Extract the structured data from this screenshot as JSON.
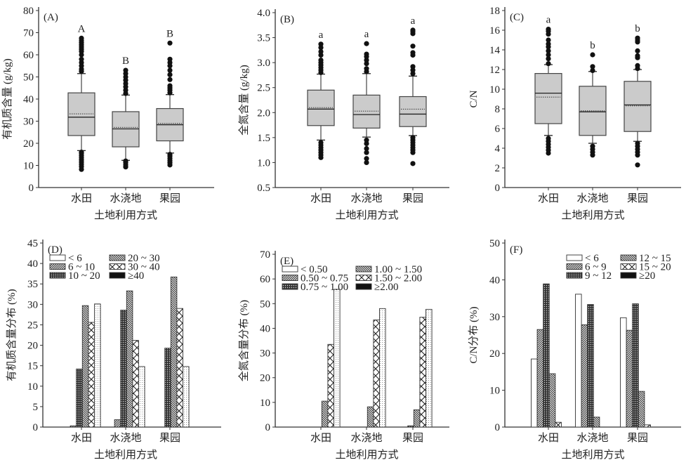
{
  "chart_data": [
    {
      "type": "box",
      "panel": "(A)",
      "ylabel": "有机质含量 (g/kg)",
      "xlabel": "土地利用方式",
      "categories": [
        "水田",
        "水浇地",
        "果园"
      ],
      "ylim": [
        0,
        80
      ],
      "yticks": [
        0,
        10,
        20,
        30,
        40,
        50,
        60,
        70,
        80
      ],
      "yticklabels": [
        "0",
        "10",
        "20",
        "30",
        "40",
        "50",
        "60",
        "70",
        "80"
      ],
      "letters": [
        "A",
        "B",
        "B"
      ],
      "boxes": [
        {
          "q1": 23.5,
          "median": 31.8,
          "mean": 33.3,
          "q3": 42.8,
          "whisker_low": 16.7,
          "whisker_high": 51.5,
          "outliers": [
            8.2,
            9.5,
            10.5,
            11.5,
            12.5,
            13.5,
            14.5,
            15.5,
            16.0,
            52.5,
            53.5,
            55.0,
            56.5,
            58.0,
            60.0,
            61.5,
            62.5,
            63.5,
            64.5,
            65.5,
            66.5,
            67.5
          ]
        },
        {
          "q1": 18.4,
          "median": 26.5,
          "mean": 27.2,
          "q3": 34.3,
          "whisker_low": 12.3,
          "whisker_high": 41.8,
          "outliers": [
            9.3,
            10.3,
            11.3,
            12.0,
            42.5,
            44.0,
            45.5,
            47.0,
            48.5,
            50.0,
            51.5,
            53.0
          ]
        },
        {
          "q1": 21.1,
          "median": 28.4,
          "mean": 29.0,
          "q3": 35.7,
          "whisker_low": 15.6,
          "whisker_high": 42.0,
          "outliers": [
            10.2,
            11.2,
            12.2,
            13.2,
            14.2,
            15.0,
            42.8,
            44.0,
            45.0,
            46.0,
            48.8,
            51.0,
            53.0,
            55.0,
            56.5,
            58.0,
            65.3
          ]
        }
      ]
    },
    {
      "type": "box",
      "panel": "(B)",
      "ylabel": "全氮含量 (g/kg)",
      "xlabel": "土地利用方式",
      "categories": [
        "水田",
        "水浇地",
        "果园"
      ],
      "ylim": [
        0.5,
        4.2
      ],
      "yticks": [
        0.5,
        1.0,
        1.5,
        2.0,
        2.5,
        3.0,
        3.5,
        4.0
      ],
      "yticklabels": [
        "0.5",
        "1.0",
        "1.5",
        "2.0",
        "2.5",
        "3.0",
        "3.5",
        "4.0"
      ],
      "letters": [
        "a",
        "a",
        "a"
      ],
      "boxes": [
        {
          "q1": 1.74,
          "median": 2.07,
          "mean": 2.1,
          "q3": 2.45,
          "whisker_low": 1.45,
          "whisker_high": 2.77,
          "outliers": [
            1.1,
            1.15,
            1.2,
            1.25,
            1.3,
            1.35,
            1.4,
            2.8,
            2.85,
            2.9,
            2.95,
            3.0,
            3.05,
            3.15,
            3.22,
            3.3,
            3.37
          ]
        },
        {
          "q1": 1.69,
          "median": 1.96,
          "mean": 2.03,
          "q3": 2.35,
          "whisker_low": 1.51,
          "whisker_high": 2.78,
          "outliers": [
            1.0,
            1.08,
            1.2,
            1.28,
            1.38,
            1.45,
            2.82,
            2.88,
            2.98,
            3.05,
            3.12,
            3.17,
            3.38
          ]
        },
        {
          "q1": 1.72,
          "median": 1.97,
          "mean": 2.07,
          "q3": 2.32,
          "whisker_low": 1.54,
          "whisker_high": 2.73,
          "outliers": [
            0.98,
            1.2,
            1.25,
            1.3,
            1.35,
            1.4,
            1.45,
            1.5,
            2.78,
            2.85,
            2.92,
            3.15,
            3.2,
            3.33,
            3.58,
            3.62,
            3.65
          ]
        }
      ]
    },
    {
      "type": "box",
      "panel": "(C)",
      "ylabel": "C/N",
      "xlabel": "土地利用方式",
      "categories": [
        "水田",
        "水浇地",
        "果园"
      ],
      "ylim": [
        0,
        18
      ],
      "yticks": [
        0,
        2,
        4,
        6,
        8,
        10,
        12,
        14,
        16,
        18
      ],
      "yticklabels": [
        "0",
        "2",
        "4",
        "6",
        "8",
        "10",
        "12",
        "14",
        "16",
        "18"
      ],
      "letters": [
        "a",
        "b",
        "b"
      ],
      "boxes": [
        {
          "q1": 6.5,
          "median": 9.6,
          "mean": 9.2,
          "q3": 11.6,
          "whisker_low": 5.3,
          "whisker_high": 12.5,
          "outliers": [
            3.5,
            3.8,
            4.1,
            4.4,
            4.7,
            5.0,
            12.6,
            13.1,
            13.5,
            13.9,
            14.3,
            14.6,
            15.0,
            15.6,
            15.9,
            16.1
          ]
        },
        {
          "q1": 5.3,
          "median": 7.7,
          "mean": 7.8,
          "q3": 10.3,
          "whisker_low": 4.5,
          "whisker_high": 11.8,
          "outliers": [
            3.3,
            3.6,
            3.9,
            4.2,
            11.9,
            12.3,
            13.5
          ]
        },
        {
          "q1": 5.7,
          "median": 8.4,
          "mean": 8.3,
          "q3": 10.8,
          "whisker_low": 4.7,
          "whisker_high": 12.0,
          "outliers": [
            2.3,
            3.3,
            3.6,
            3.9,
            4.2,
            4.5,
            12.1,
            12.4,
            13.2,
            13.4,
            13.9,
            14.8,
            15.0,
            15.2
          ]
        }
      ]
    },
    {
      "type": "bar",
      "panel": "(D)",
      "ylabel": "有机质含量分布 (%)",
      "xlabel": "土地利用方式",
      "categories": [
        "水田",
        "水浇地",
        "果园"
      ],
      "ylim": [
        0,
        45
      ],
      "yticks": [
        0,
        5,
        10,
        15,
        20,
        25,
        30,
        35,
        40,
        45
      ],
      "yticklabels": [
        "0",
        "5",
        "10",
        "15",
        "20",
        "25",
        "30",
        "35",
        "40",
        "45"
      ],
      "legend": [
        "< 6",
        "20 ~ 30",
        "6 ~ 10",
        "30 ~ 40",
        "10 ~ 20",
        "≥40"
      ],
      "series": [
        {
          "name": "< 6",
          "pattern": "white",
          "values": [
            0,
            0,
            0
          ]
        },
        {
          "name": "6 ~ 10",
          "pattern": "hatch-fwd",
          "values": [
            0.3,
            1.8,
            0
          ]
        },
        {
          "name": "10 ~ 20",
          "pattern": "dots-dark",
          "values": [
            14.2,
            28.6,
            19.3
          ]
        },
        {
          "name": "20 ~ 30",
          "pattern": "hatch-back",
          "values": [
            29.7,
            33.3,
            36.7
          ]
        },
        {
          "name": "30 ~ 40",
          "pattern": "cross",
          "values": [
            25.6,
            21.2,
            29.0
          ]
        },
        {
          "name": "≥40",
          "pattern": "dots-light",
          "values": [
            30.1,
            14.8,
            14.8
          ]
        }
      ]
    },
    {
      "type": "bar",
      "panel": "(E)",
      "ylabel": "全氮含量分布 (%)",
      "xlabel": "土地利用方式",
      "categories": [
        "水田",
        "水浇地",
        "果园"
      ],
      "ylim": [
        0,
        75
      ],
      "yticks": [
        0,
        10,
        20,
        30,
        40,
        50,
        60,
        70
      ],
      "yticklabels": [
        "0",
        "10",
        "20",
        "30",
        "40",
        "50",
        "60",
        "70"
      ],
      "legend": [
        "< 0.50",
        "1.00 ~ 1.50",
        "0.50 ~ 0.75",
        "1.50 ~ 2.00",
        "0.75 ~ 1.00",
        "≥2.00"
      ],
      "series": [
        {
          "name": "< 0.50",
          "pattern": "white",
          "values": [
            0,
            0,
            0
          ]
        },
        {
          "name": "0.50 ~ 0.75",
          "pattern": "hatch-fwd",
          "values": [
            0,
            0,
            0
          ]
        },
        {
          "name": "0.75 ~ 1.00",
          "pattern": "dots-dark",
          "values": [
            0,
            0,
            0.5
          ]
        },
        {
          "name": "1.00 ~ 1.50",
          "pattern": "hatch-back",
          "values": [
            10.5,
            8.2,
            7.0
          ]
        },
        {
          "name": "1.50 ~ 2.00",
          "pattern": "cross",
          "values": [
            33.5,
            43.4,
            44.5
          ]
        },
        {
          "name": "≥2.00",
          "pattern": "dots-light",
          "values": [
            55.8,
            48.0,
            47.7
          ]
        }
      ]
    },
    {
      "type": "bar",
      "panel": "(F)",
      "ylabel": "C/N分布 (%)",
      "xlabel": "土地利用方式",
      "categories": [
        "水田",
        "水浇地",
        "果园"
      ],
      "ylim": [
        0,
        50
      ],
      "yticks": [
        0,
        10,
        20,
        30,
        40,
        50
      ],
      "yticklabels": [
        "0",
        "10",
        "20",
        "30",
        "40",
        "50"
      ],
      "legend": [
        "< 6",
        "12 ~ 15",
        "6 ~ 9",
        "15 ~ 20",
        "9 ~ 12",
        "≥20"
      ],
      "series": [
        {
          "name": "< 6",
          "pattern": "white",
          "values": [
            18.5,
            36.1,
            29.7
          ]
        },
        {
          "name": "6 ~ 9",
          "pattern": "hatch-fwd",
          "values": [
            26.5,
            27.8,
            26.3
          ]
        },
        {
          "name": "9 ~ 12",
          "pattern": "dots-dark",
          "values": [
            38.9,
            33.3,
            33.5
          ]
        },
        {
          "name": "12 ~ 15",
          "pattern": "hatch-back",
          "values": [
            14.5,
            2.7,
            9.7
          ]
        },
        {
          "name": "15 ~ 20",
          "pattern": "cross",
          "values": [
            1.3,
            0,
            0.6
          ]
        },
        {
          "name": "≥20",
          "pattern": "black",
          "values": [
            0,
            0,
            0
          ]
        }
      ]
    }
  ]
}
